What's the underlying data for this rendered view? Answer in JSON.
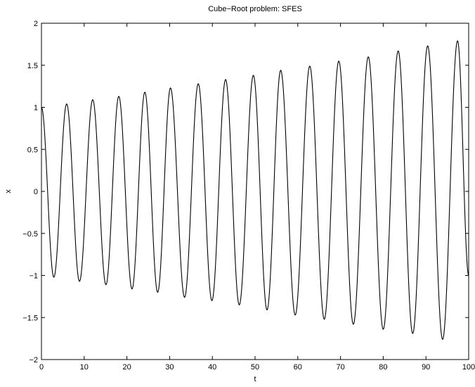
{
  "chart_data": {
    "type": "line",
    "title": "Cube−Root problem: SFES",
    "xlabel": "t",
    "ylabel": "x",
    "xlim": [
      0,
      100
    ],
    "ylim": [
      -2,
      2
    ],
    "x_ticks": [
      0,
      10,
      20,
      30,
      40,
      50,
      60,
      70,
      80,
      90,
      100
    ],
    "x_tick_labels": [
      "0",
      "10",
      "20",
      "30",
      "40",
      "50",
      "60",
      "70",
      "80",
      "90",
      "100"
    ],
    "y_ticks": [
      -2,
      -1.5,
      -1,
      -0.5,
      0,
      0.5,
      1,
      1.5,
      2
    ],
    "y_tick_labels": [
      "−2",
      "−1.5",
      "−1",
      "−0.5",
      "0",
      "0.5",
      "1",
      "1.5",
      "2"
    ],
    "grid": false,
    "legend": "none",
    "line_color": "#000000",
    "series": [
      {
        "x": [
          0,
          2.9,
          5.9,
          8.9,
          12.0,
          15.1,
          18.1,
          21.2,
          24.2,
          27.2,
          30.2,
          33.5,
          36.7,
          39.9,
          43.1,
          46.3,
          49.6,
          52.8,
          56.0,
          59.4,
          62.8,
          66.2,
          69.6,
          73.0,
          76.5,
          80.0,
          83.5,
          86.9,
          90.4,
          93.9,
          97.4,
          100
        ],
        "y": [
          1.0,
          -1.02,
          1.04,
          -1.07,
          1.09,
          -1.11,
          1.13,
          -1.16,
          1.18,
          -1.2,
          1.23,
          -1.26,
          1.28,
          -1.3,
          1.33,
          -1.35,
          1.38,
          -1.41,
          1.44,
          -1.47,
          1.49,
          -1.52,
          1.55,
          -1.58,
          1.6,
          -1.64,
          1.67,
          -1.69,
          1.73,
          -1.76,
          1.79,
          -1.0
        ]
      }
    ]
  }
}
